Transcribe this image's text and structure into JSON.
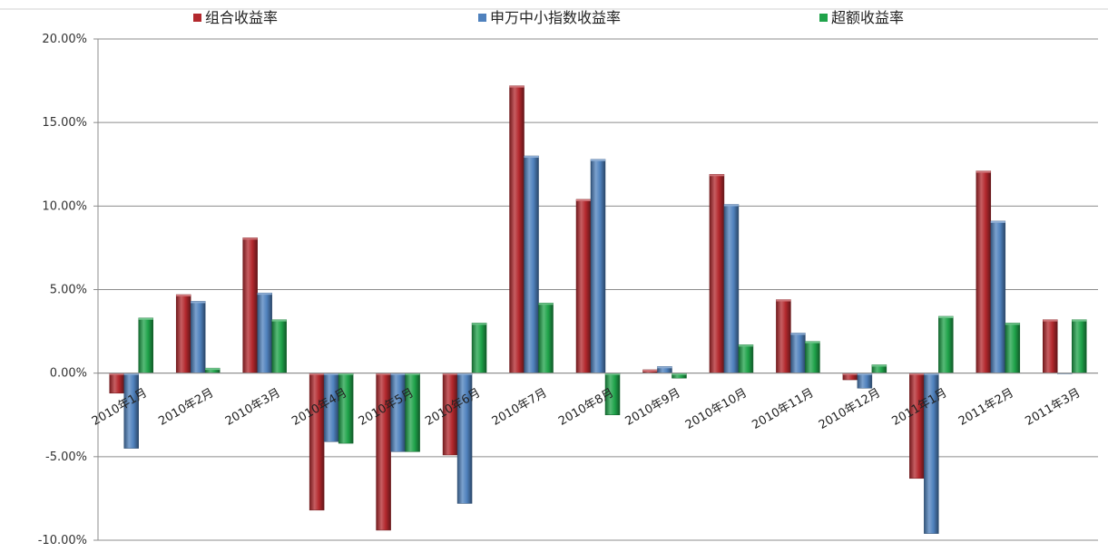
{
  "chart_data": {
    "type": "bar",
    "categories": [
      "2010年1月",
      "2010年2月",
      "2010年3月",
      "2010年4月",
      "2010年5月",
      "2010年6月",
      "2010年7月",
      "2010年8月",
      "2010年9月",
      "2010年10月",
      "2010年11月",
      "2010年12月",
      "2011年1月",
      "2011年2月",
      "2011年3月"
    ],
    "series": [
      {
        "name": "组合收益率",
        "color": "#b3282d",
        "values": [
          -1.2,
          4.7,
          8.1,
          -8.2,
          -9.4,
          -4.9,
          17.2,
          10.4,
          0.2,
          11.9,
          4.4,
          -0.4,
          -6.3,
          12.1,
          3.2
        ]
      },
      {
        "name": "申万中小指数收益率",
        "color": "#4f81bd",
        "values": [
          -4.5,
          4.3,
          4.8,
          -4.1,
          -4.7,
          -7.8,
          13.0,
          12.8,
          0.4,
          10.1,
          2.4,
          -0.9,
          -9.6,
          9.1,
          0.0
        ]
      },
      {
        "name": "超额收益率",
        "color": "#1fa34a",
        "values": [
          3.3,
          0.3,
          3.2,
          -4.2,
          -4.7,
          3.0,
          4.2,
          -2.5,
          -0.3,
          1.7,
          1.9,
          0.5,
          3.4,
          3.0,
          3.2
        ]
      }
    ],
    "ylim": [
      -10,
      20
    ],
    "yticks": [
      -10,
      -5,
      0,
      5,
      10,
      15,
      20
    ],
    "ytick_labels": [
      "-10.00%",
      "-5.00%",
      "0.00%",
      "5.00%",
      "10.00%",
      "15.00%",
      "20.00%"
    ],
    "grid": true,
    "legend_position": "top"
  }
}
